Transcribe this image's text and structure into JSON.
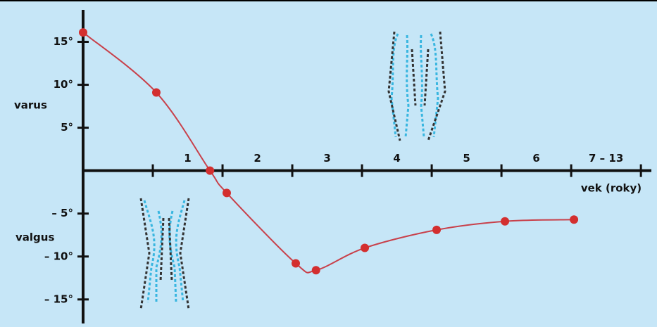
{
  "chart_data": {
    "type": "line",
    "annotations": [
      "varus",
      "valgus"
    ],
    "x_label": "vek (roky)",
    "categories": [
      "1",
      "2",
      "3",
      "4",
      "5",
      "6",
      "7 – 13"
    ],
    "series": [
      {
        "color": "#c8404a",
        "x": [
          0,
          1.05,
          1.82,
          2.06,
          3.05,
          3.34,
          4.04,
          5.07,
          6.05,
          7.04
        ],
        "values": [
          16.1,
          9.1,
          0,
          -2.6,
          -10.8,
          -11.6,
          -9.0,
          -6.9,
          -5.9,
          -5.7
        ]
      }
    ],
    "marker_color": "#d32f2f",
    "xlim": [
      0,
      8.15
    ],
    "xticks": [
      1,
      2,
      3,
      4,
      5,
      6,
      7,
      8
    ],
    "ylim": [
      -17.8,
      18.4
    ],
    "yticks": [
      {
        "value": 15,
        "label": "15°"
      },
      {
        "value": 10,
        "label": "10°"
      },
      {
        "value": 5,
        "label": "5°"
      },
      {
        "value": -5,
        "label": "– 5°"
      },
      {
        "value": -10,
        "label": "– 10°"
      },
      {
        "value": -15,
        "label": "– 15°"
      }
    ]
  }
}
